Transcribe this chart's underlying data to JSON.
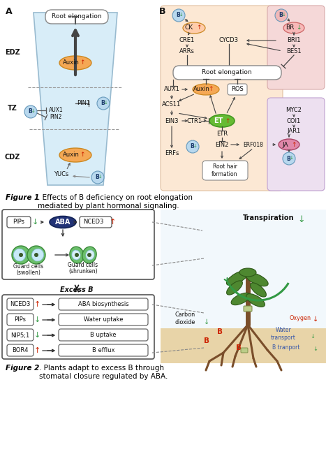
{
  "fig_width": 4.67,
  "fig_height": 6.6,
  "dpi": 100,
  "bg_color": "#ffffff",
  "fig1_caption_bold": "Figure 1",
  "fig1_caption_rest": ". Effects of B deficiency on root elongation\nmediated by plant hormonal signaling.",
  "fig2_caption_bold": "Figure 2",
  "fig2_caption_rest": ". Plants adapt to excess B through\nstomatal closure regulated by ABA.",
  "red_color": "#cc2200",
  "green_color": "#339944",
  "blue_color": "#2266cc",
  "auxin_fill": "#f5a855",
  "et_fill": "#66bb33",
  "ja_fill": "#cc6688",
  "aba_fill": "#223377",
  "b_circle_color": "#b8d8ee",
  "b_circle_down_color": "#f0b8b8"
}
